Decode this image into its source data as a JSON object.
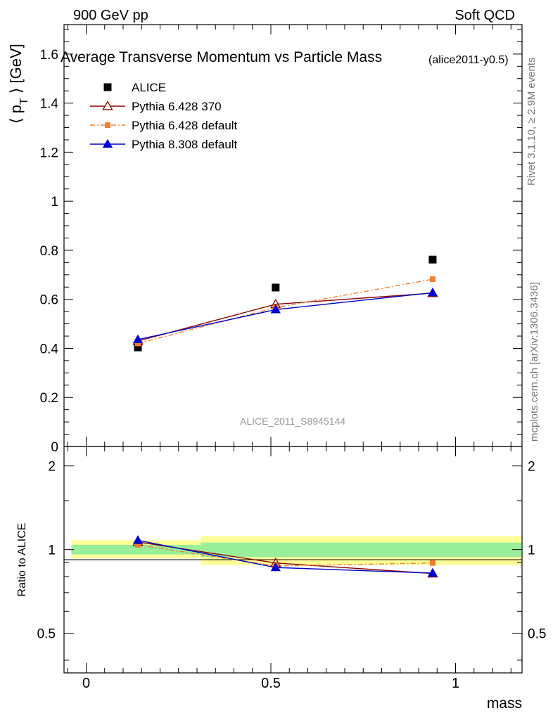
{
  "header": {
    "left": "900 GeV pp",
    "right": "Soft QCD"
  },
  "side_labels": {
    "rivet": "Rivet 3.1.10, ≥ 2.9M events",
    "mcplots": "mcplots.cern.ch [arXiv:1306.3436]"
  },
  "chart_data": [
    {
      "type": "scatter",
      "title": "Average Transverse Momentum vs Particle Mass",
      "subtitle": "(alice2011-y0.5)",
      "ylabel": "⟨ p_T ⟩ [GeV]",
      "watermark": "ALICE_2011_S8945144",
      "ylim": [
        0,
        1.72
      ],
      "xlim": [
        -0.06,
        1.18
      ],
      "y_ticks": [
        "0",
        "0.2",
        "0.4",
        "0.6",
        "0.8",
        "1",
        "1.2",
        "1.4",
        "1.6"
      ],
      "legend_position": "top-left",
      "x": [
        0.14,
        0.513,
        0.938
      ],
      "series": [
        {
          "name": "ALICE",
          "color": "#000000",
          "marker": "square",
          "line": "none",
          "values": [
            0.404,
            0.648,
            0.762
          ]
        },
        {
          "name": "Pythia 6.428 370",
          "color": "#8b0000",
          "marker": "open-triangle",
          "line": "solid",
          "values": [
            0.43,
            0.58,
            0.625
          ]
        },
        {
          "name": "Pythia 6.428 default",
          "color": "#f08030",
          "marker": "small-square",
          "line": "dashdot",
          "values": [
            0.42,
            0.566,
            0.682
          ]
        },
        {
          "name": "Pythia 8.308 default",
          "color": "#0000cc",
          "marker": "filled-triangle",
          "line": "solid",
          "values": [
            0.436,
            0.558,
            0.627
          ]
        }
      ]
    },
    {
      "type": "line",
      "ylabel": "Ratio to ALICE",
      "xlabel": "mass",
      "ylim": [
        0.36,
        2.35
      ],
      "xlim": [
        -0.06,
        1.18
      ],
      "log_y": true,
      "y_ticks": [
        "0.5",
        "1",
        "2"
      ],
      "x_ticks": [
        "0",
        "0.5",
        "1"
      ],
      "bands": [
        {
          "x": [
            -0.04,
            0.31
          ],
          "yellow": [
            0.93,
            1.08
          ],
          "green": [
            0.96,
            1.04
          ]
        },
        {
          "x": [
            0.31,
            0.72
          ],
          "yellow": [
            0.88,
            1.12
          ],
          "green": [
            0.94,
            1.06
          ]
        },
        {
          "x": [
            0.72,
            1.18
          ],
          "yellow": [
            0.88,
            1.12
          ],
          "green": [
            0.94,
            1.06
          ]
        }
      ],
      "x": [
        0.14,
        0.513,
        0.938
      ],
      "series": [
        {
          "name": "Pythia 6.428 370",
          "color": "#8b0000",
          "values": [
            1.065,
            0.895,
            0.82
          ]
        },
        {
          "name": "Pythia 6.428 default",
          "color": "#f08030",
          "values": [
            1.04,
            0.873,
            0.895
          ]
        },
        {
          "name": "Pythia 8.308 default",
          "color": "#0000cc",
          "values": [
            1.08,
            0.862,
            0.823
          ]
        }
      ]
    }
  ]
}
